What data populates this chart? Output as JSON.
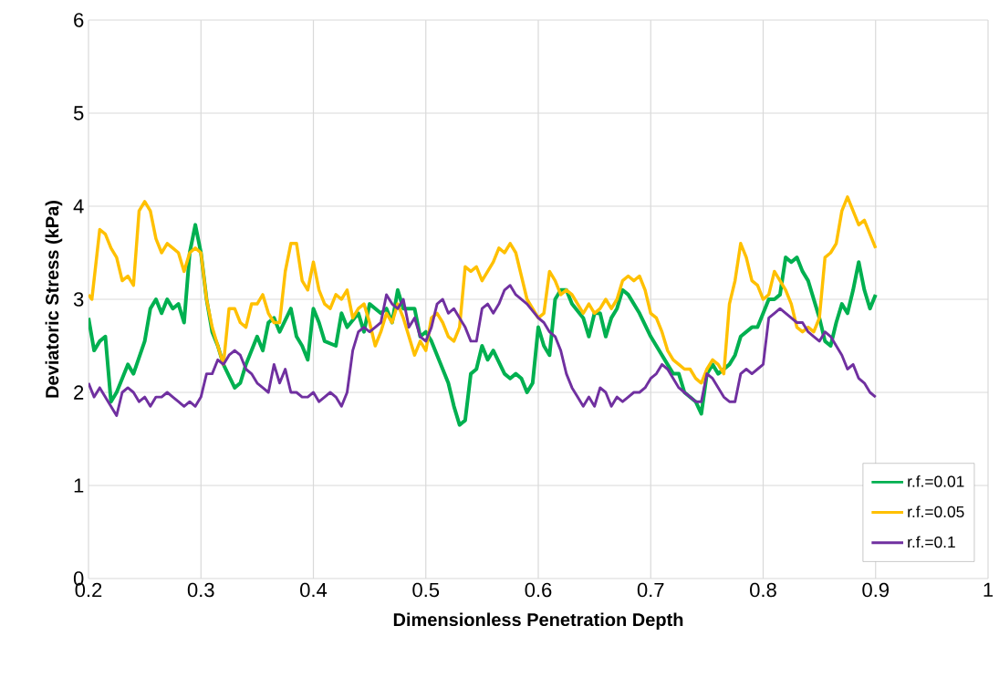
{
  "chart_data": {
    "type": "line",
    "xlabel": "Dimensionless Penetration Depth",
    "ylabel": "Deviatoric Stress (kPa)",
    "xlim": [
      0.2,
      1
    ],
    "ylim": [
      0,
      6
    ],
    "xticks": [
      0.2,
      0.3,
      0.4,
      0.5,
      0.6,
      0.7,
      0.8,
      0.9,
      1
    ],
    "yticks": [
      0,
      1,
      2,
      3,
      4,
      5,
      6
    ],
    "grid": true,
    "legend": "bottom right",
    "series": [
      {
        "name": "r.f.=0.01",
        "color": "#00b050",
        "x": [
          0.2,
          0.205,
          0.21,
          0.215,
          0.22,
          0.225,
          0.235,
          0.24,
          0.25,
          0.255,
          0.26,
          0.265,
          0.27,
          0.275,
          0.28,
          0.285,
          0.29,
          0.295,
          0.3,
          0.305,
          0.31,
          0.315,
          0.32,
          0.33,
          0.335,
          0.34,
          0.35,
          0.355,
          0.36,
          0.365,
          0.37,
          0.38,
          0.385,
          0.39,
          0.395,
          0.4,
          0.405,
          0.41,
          0.42,
          0.425,
          0.43,
          0.44,
          0.445,
          0.45,
          0.46,
          0.465,
          0.47,
          0.475,
          0.48,
          0.49,
          0.495,
          0.5,
          0.505,
          0.51,
          0.52,
          0.525,
          0.53,
          0.535,
          0.54,
          0.545,
          0.55,
          0.555,
          0.56,
          0.57,
          0.575,
          0.58,
          0.585,
          0.59,
          0.595,
          0.6,
          0.605,
          0.61,
          0.615,
          0.62,
          0.625,
          0.63,
          0.64,
          0.645,
          0.65,
          0.655,
          0.66,
          0.665,
          0.67,
          0.675,
          0.68,
          0.69,
          0.7,
          0.71,
          0.72,
          0.725,
          0.73,
          0.74,
          0.745,
          0.75,
          0.755,
          0.76,
          0.77,
          0.775,
          0.78,
          0.79,
          0.795,
          0.8,
          0.805,
          0.81,
          0.815,
          0.82,
          0.825,
          0.83,
          0.835,
          0.84,
          0.85,
          0.855,
          0.86,
          0.865,
          0.87,
          0.875,
          0.88,
          0.885,
          0.89,
          0.895,
          0.9
        ],
        "values": [
          2.8,
          2.45,
          2.55,
          2.6,
          1.9,
          2.0,
          2.3,
          2.2,
          2.55,
          2.9,
          3.0,
          2.85,
          3.0,
          2.9,
          2.95,
          2.75,
          3.5,
          3.8,
          3.5,
          3.0,
          2.65,
          2.5,
          2.3,
          2.05,
          2.1,
          2.3,
          2.6,
          2.45,
          2.75,
          2.8,
          2.65,
          2.9,
          2.6,
          2.5,
          2.35,
          2.9,
          2.75,
          2.55,
          2.5,
          2.85,
          2.7,
          2.85,
          2.65,
          2.95,
          2.85,
          2.9,
          2.75,
          3.1,
          2.9,
          2.9,
          2.6,
          2.65,
          2.55,
          2.4,
          2.1,
          1.85,
          1.65,
          1.7,
          2.2,
          2.25,
          2.5,
          2.35,
          2.45,
          2.2,
          2.15,
          2.2,
          2.15,
          2.0,
          2.1,
          2.7,
          2.5,
          2.4,
          3.0,
          3.1,
          3.1,
          2.95,
          2.8,
          2.6,
          2.85,
          2.85,
          2.6,
          2.8,
          2.9,
          3.1,
          3.05,
          2.85,
          2.6,
          2.4,
          2.2,
          2.2,
          2.0,
          1.9,
          1.77,
          2.2,
          2.3,
          2.2,
          2.3,
          2.4,
          2.6,
          2.7,
          2.7,
          2.85,
          3.0,
          3.0,
          3.05,
          3.45,
          3.4,
          3.45,
          3.3,
          3.2,
          2.8,
          2.55,
          2.5,
          2.75,
          2.95,
          2.85,
          3.1,
          3.4,
          3.1,
          2.9,
          3.05
        ]
      },
      {
        "name": "r.f.=0.05",
        "color": "#ffc000",
        "x": [
          0.2,
          0.203,
          0.21,
          0.215,
          0.22,
          0.225,
          0.23,
          0.235,
          0.24,
          0.245,
          0.25,
          0.255,
          0.26,
          0.265,
          0.27,
          0.275,
          0.28,
          0.285,
          0.29,
          0.295,
          0.3,
          0.305,
          0.31,
          0.315,
          0.32,
          0.325,
          0.33,
          0.335,
          0.34,
          0.345,
          0.35,
          0.355,
          0.36,
          0.365,
          0.37,
          0.375,
          0.38,
          0.385,
          0.39,
          0.395,
          0.4,
          0.405,
          0.41,
          0.415,
          0.42,
          0.425,
          0.43,
          0.435,
          0.44,
          0.445,
          0.45,
          0.455,
          0.46,
          0.465,
          0.47,
          0.475,
          0.48,
          0.485,
          0.49,
          0.495,
          0.5,
          0.505,
          0.51,
          0.515,
          0.52,
          0.525,
          0.53,
          0.535,
          0.54,
          0.545,
          0.55,
          0.555,
          0.56,
          0.565,
          0.57,
          0.575,
          0.58,
          0.585,
          0.59,
          0.595,
          0.6,
          0.605,
          0.61,
          0.615,
          0.62,
          0.625,
          0.63,
          0.64,
          0.645,
          0.65,
          0.655,
          0.66,
          0.665,
          0.67,
          0.675,
          0.68,
          0.685,
          0.69,
          0.695,
          0.7,
          0.705,
          0.71,
          0.715,
          0.72,
          0.725,
          0.73,
          0.735,
          0.74,
          0.745,
          0.75,
          0.755,
          0.76,
          0.765,
          0.77,
          0.775,
          0.78,
          0.785,
          0.79,
          0.795,
          0.8,
          0.805,
          0.81,
          0.815,
          0.82,
          0.825,
          0.83,
          0.835,
          0.84,
          0.845,
          0.85,
          0.855,
          0.86,
          0.865,
          0.87,
          0.875,
          0.88,
          0.885,
          0.89,
          0.895,
          0.9
        ],
        "values": [
          3.05,
          3.0,
          3.75,
          3.7,
          3.55,
          3.45,
          3.2,
          3.25,
          3.15,
          3.95,
          4.05,
          3.95,
          3.65,
          3.5,
          3.6,
          3.55,
          3.5,
          3.3,
          3.5,
          3.55,
          3.5,
          3.0,
          2.7,
          2.5,
          2.3,
          2.9,
          2.9,
          2.75,
          2.7,
          2.95,
          2.95,
          3.05,
          2.85,
          2.75,
          2.75,
          3.3,
          3.6,
          3.6,
          3.2,
          3.1,
          3.4,
          3.1,
          2.95,
          2.9,
          3.05,
          3.0,
          3.1,
          2.8,
          2.9,
          2.95,
          2.75,
          2.5,
          2.65,
          2.85,
          2.75,
          2.95,
          2.8,
          2.6,
          2.4,
          2.55,
          2.45,
          2.8,
          2.85,
          2.75,
          2.6,
          2.55,
          2.7,
          3.35,
          3.3,
          3.35,
          3.2,
          3.3,
          3.4,
          3.55,
          3.5,
          3.6,
          3.5,
          3.25,
          3.0,
          2.9,
          2.8,
          2.85,
          3.3,
          3.2,
          3.05,
          3.1,
          3.05,
          2.85,
          2.95,
          2.85,
          2.9,
          3.0,
          2.9,
          3.0,
          3.2,
          3.25,
          3.2,
          3.25,
          3.1,
          2.85,
          2.8,
          2.65,
          2.45,
          2.35,
          2.3,
          2.25,
          2.25,
          2.15,
          2.1,
          2.25,
          2.35,
          2.3,
          2.2,
          2.95,
          3.2,
          3.6,
          3.45,
          3.2,
          3.15,
          3.0,
          3.05,
          3.3,
          3.2,
          3.1,
          2.95,
          2.7,
          2.65,
          2.7,
          2.65,
          2.8,
          3.45,
          3.5,
          3.6,
          3.95,
          4.1,
          3.95,
          3.8,
          3.85,
          3.7,
          3.55
        ]
      },
      {
        "name": "r.f.=0.1",
        "color": "#7030a0",
        "x": [
          0.2,
          0.205,
          0.21,
          0.215,
          0.22,
          0.225,
          0.23,
          0.235,
          0.24,
          0.245,
          0.25,
          0.255,
          0.26,
          0.265,
          0.27,
          0.275,
          0.28,
          0.285,
          0.29,
          0.295,
          0.3,
          0.305,
          0.31,
          0.315,
          0.32,
          0.325,
          0.33,
          0.335,
          0.34,
          0.345,
          0.35,
          0.355,
          0.36,
          0.365,
          0.37,
          0.375,
          0.38,
          0.385,
          0.39,
          0.395,
          0.4,
          0.405,
          0.41,
          0.415,
          0.42,
          0.425,
          0.43,
          0.435,
          0.44,
          0.445,
          0.45,
          0.455,
          0.46,
          0.465,
          0.47,
          0.475,
          0.48,
          0.485,
          0.49,
          0.495,
          0.5,
          0.505,
          0.51,
          0.515,
          0.52,
          0.525,
          0.53,
          0.535,
          0.54,
          0.545,
          0.55,
          0.555,
          0.56,
          0.565,
          0.57,
          0.575,
          0.58,
          0.59,
          0.6,
          0.605,
          0.61,
          0.615,
          0.62,
          0.625,
          0.63,
          0.635,
          0.64,
          0.645,
          0.65,
          0.655,
          0.66,
          0.665,
          0.67,
          0.675,
          0.68,
          0.685,
          0.69,
          0.695,
          0.7,
          0.705,
          0.71,
          0.715,
          0.72,
          0.725,
          0.73,
          0.735,
          0.74,
          0.745,
          0.75,
          0.755,
          0.76,
          0.765,
          0.77,
          0.775,
          0.78,
          0.785,
          0.79,
          0.795,
          0.8,
          0.805,
          0.81,
          0.815,
          0.82,
          0.825,
          0.83,
          0.835,
          0.84,
          0.845,
          0.85,
          0.855,
          0.86,
          0.865,
          0.87,
          0.875,
          0.88,
          0.885,
          0.89,
          0.895,
          0.9
        ],
        "values": [
          2.1,
          1.95,
          2.05,
          1.95,
          1.85,
          1.75,
          2.0,
          2.05,
          2.0,
          1.9,
          1.95,
          1.85,
          1.95,
          1.95,
          2.0,
          1.95,
          1.9,
          1.85,
          1.9,
          1.85,
          1.95,
          2.2,
          2.2,
          2.35,
          2.3,
          2.4,
          2.45,
          2.4,
          2.25,
          2.2,
          2.1,
          2.05,
          2.0,
          2.3,
          2.1,
          2.25,
          2.0,
          2.0,
          1.95,
          1.95,
          2.0,
          1.9,
          1.95,
          2.0,
          1.95,
          1.85,
          2.0,
          2.45,
          2.65,
          2.7,
          2.65,
          2.7,
          2.75,
          3.05,
          2.95,
          2.9,
          3.0,
          2.7,
          2.8,
          2.6,
          2.55,
          2.7,
          2.95,
          3.0,
          2.85,
          2.9,
          2.8,
          2.7,
          2.55,
          2.55,
          2.9,
          2.95,
          2.85,
          2.95,
          3.1,
          3.15,
          3.05,
          2.95,
          2.8,
          2.75,
          2.65,
          2.6,
          2.45,
          2.2,
          2.05,
          1.95,
          1.85,
          1.95,
          1.85,
          2.05,
          2.0,
          1.85,
          1.95,
          1.9,
          1.95,
          2.0,
          2.0,
          2.05,
          2.15,
          2.2,
          2.3,
          2.25,
          2.15,
          2.05,
          2.0,
          1.95,
          1.9,
          1.9,
          2.2,
          2.15,
          2.05,
          1.95,
          1.9,
          1.9,
          2.2,
          2.25,
          2.2,
          2.25,
          2.3,
          2.8,
          2.85,
          2.9,
          2.85,
          2.8,
          2.75,
          2.75,
          2.65,
          2.6,
          2.55,
          2.65,
          2.6,
          2.5,
          2.4,
          2.25,
          2.3,
          2.15,
          2.1,
          2.0,
          1.95
        ]
      }
    ]
  }
}
